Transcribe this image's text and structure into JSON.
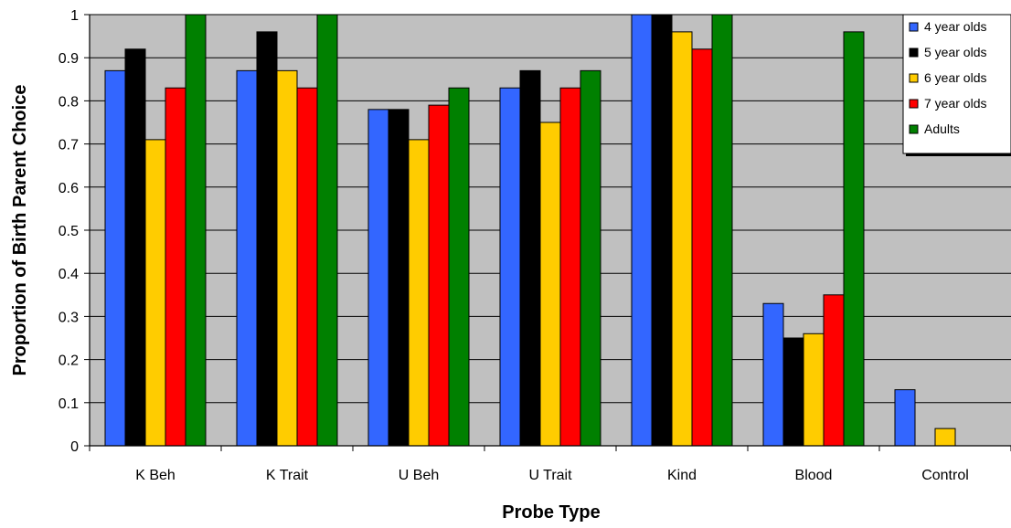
{
  "chart_data": {
    "type": "bar",
    "title": "",
    "xlabel": "Probe Type",
    "ylabel": "Proportion of Birth Parent Choice",
    "ylim": [
      0,
      1
    ],
    "yticks": [
      "0",
      "0.1",
      "0.2",
      "0.3",
      "0.4",
      "0.5",
      "0.6",
      "0.7",
      "0.8",
      "0.9",
      "1"
    ],
    "grid": true,
    "legend_position": "top-right",
    "plot_background": "#c0c0c0",
    "categories": [
      "K Beh",
      "K Trait",
      "U Beh",
      "U Trait",
      "Kind",
      "Blood",
      "Control"
    ],
    "series": [
      {
        "name": "4 year olds",
        "color": "#3366ff",
        "values": [
          0.87,
          0.87,
          0.78,
          0.83,
          1.0,
          0.33,
          0.13
        ]
      },
      {
        "name": "5 year olds",
        "color": "#000000",
        "values": [
          0.92,
          0.96,
          0.78,
          0.87,
          1.0,
          0.25,
          0
        ]
      },
      {
        "name": "6 year olds",
        "color": "#ffcc00",
        "values": [
          0.71,
          0.87,
          0.71,
          0.75,
          0.96,
          0.26,
          0.04
        ]
      },
      {
        "name": "7 year olds",
        "color": "#ff0000",
        "values": [
          0.83,
          0.83,
          0.79,
          0.83,
          0.92,
          0.35,
          0
        ]
      },
      {
        "name": "Adults",
        "color": "#008000",
        "values": [
          1.0,
          1.0,
          0.83,
          0.87,
          1.0,
          0.96,
          0
        ]
      }
    ]
  }
}
